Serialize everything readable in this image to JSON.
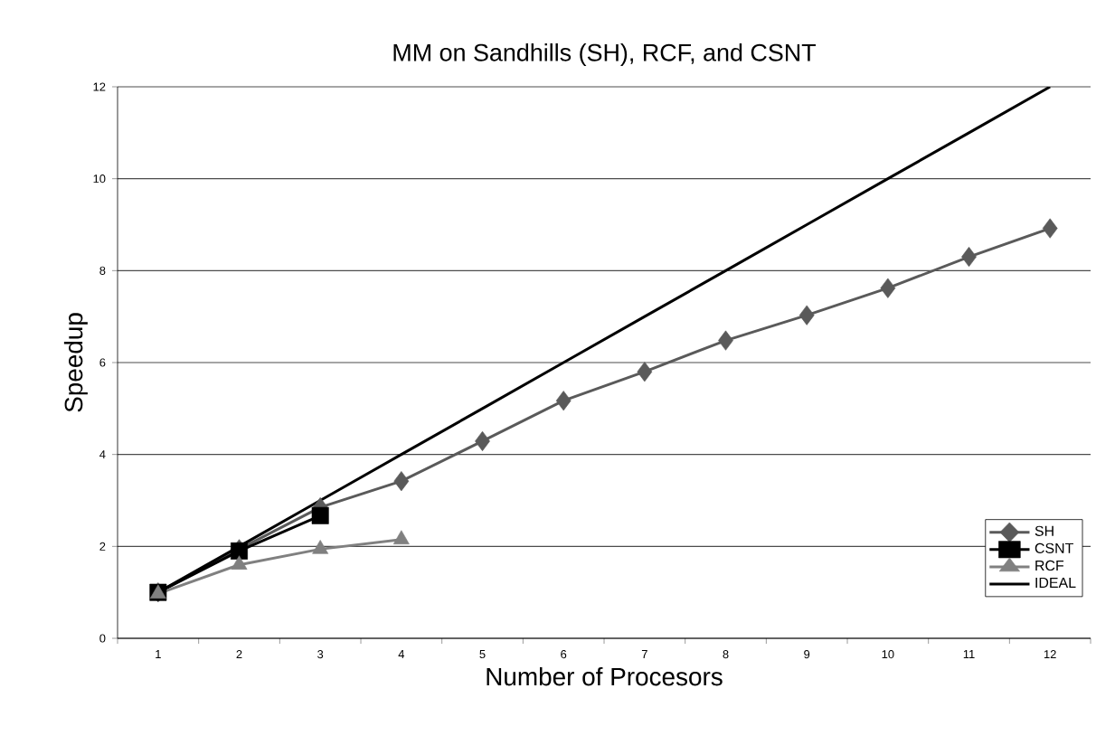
{
  "chart_data": {
    "type": "line",
    "title": "MM on Sandhills (SH), RCF, and CSNT",
    "xlabel": "Number of Procesors",
    "ylabel": "Speedup",
    "categories": [
      "1",
      "2",
      "3",
      "4",
      "5",
      "6",
      "7",
      "8",
      "9",
      "10",
      "11",
      "12"
    ],
    "ylim": [
      0,
      12
    ],
    "yticks": [
      0,
      2,
      4,
      6,
      8,
      10,
      12
    ],
    "grid": "y",
    "legend": "bottom right",
    "series": [
      {
        "name": "SH",
        "color": "#5a5a5a",
        "marker": "diamond",
        "values": [
          1.0,
          1.94,
          2.85,
          3.42,
          4.29,
          5.17,
          5.8,
          6.48,
          7.03,
          7.62,
          8.3,
          8.92
        ]
      },
      {
        "name": "CSNT",
        "color": "#000000",
        "marker": "square",
        "values": [
          1.0,
          1.9,
          2.67,
          null,
          null,
          null,
          null,
          null,
          null,
          null,
          null,
          null
        ]
      },
      {
        "name": "RCF",
        "color": "#808080",
        "marker": "triangle",
        "values": [
          0.97,
          1.6,
          1.94,
          2.15,
          null,
          null,
          null,
          null,
          null,
          null,
          null,
          null
        ]
      },
      {
        "name": "IDEAL",
        "color": "#000000",
        "marker": "none",
        "values": [
          1,
          2,
          3,
          4,
          5,
          6,
          7,
          8,
          9,
          10,
          11,
          12
        ]
      }
    ]
  }
}
